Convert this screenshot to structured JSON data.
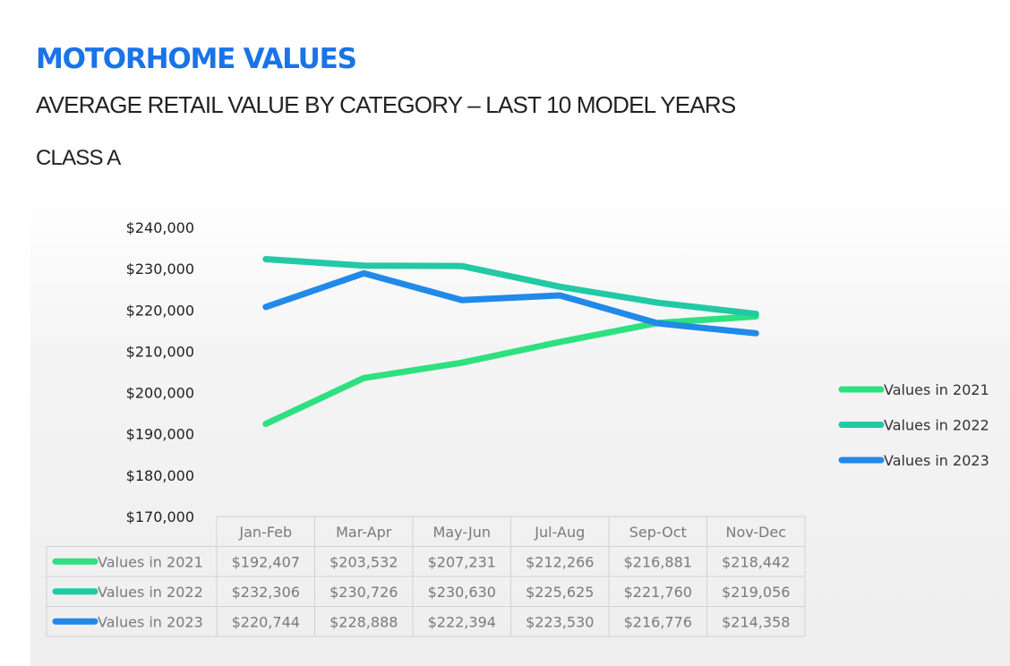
{
  "header": {
    "title": "MOTORHOME VALUES",
    "subtitle": "AVERAGE RETAIL VALUE BY CATEGORY – LAST 10 MODEL YEARS",
    "category": "CLASS A"
  },
  "chart_data": {
    "type": "line",
    "categories": [
      "Jan-Feb",
      "Mar-Apr",
      "May-Jun",
      "Jul-Aug",
      "Sep-Oct",
      "Nov-Dec"
    ],
    "ylim": [
      170000,
      240000
    ],
    "yticks": [
      {
        "value": 240000,
        "label": "$240,000"
      },
      {
        "value": 230000,
        "label": "$230,000"
      },
      {
        "value": 220000,
        "label": "$220,000"
      },
      {
        "value": 210000,
        "label": "$210,000"
      },
      {
        "value": 200000,
        "label": "$200,000"
      },
      {
        "value": 190000,
        "label": "$190,000"
      },
      {
        "value": 180000,
        "label": "$180,000"
      },
      {
        "value": 170000,
        "label": "$170,000"
      }
    ],
    "grid": false,
    "legend_position": "right",
    "data_table": true,
    "series": [
      {
        "name": "Values in 2021",
        "color": "#2ee07f",
        "values": [
          192407,
          203532,
          207231,
          212266,
          216881,
          218442
        ],
        "labels": [
          "$192,407",
          "$203,532",
          "$207,231",
          "$212,266",
          "$216,881",
          "$218,442"
        ]
      },
      {
        "name": "Values in 2022",
        "color": "#22c9a5",
        "values": [
          232306,
          230726,
          230630,
          225625,
          221760,
          219056
        ],
        "labels": [
          "$232,306",
          "$230,726",
          "$230,630",
          "$225,625",
          "$221,760",
          "$219,056"
        ]
      },
      {
        "name": "Values in 2023",
        "color": "#2189e8",
        "values": [
          220744,
          228888,
          222394,
          223530,
          216776,
          214358
        ],
        "labels": [
          "$220,744",
          "$228,888",
          "$222,394",
          "$223,530",
          "$216,776",
          "$214,358"
        ]
      }
    ]
  }
}
